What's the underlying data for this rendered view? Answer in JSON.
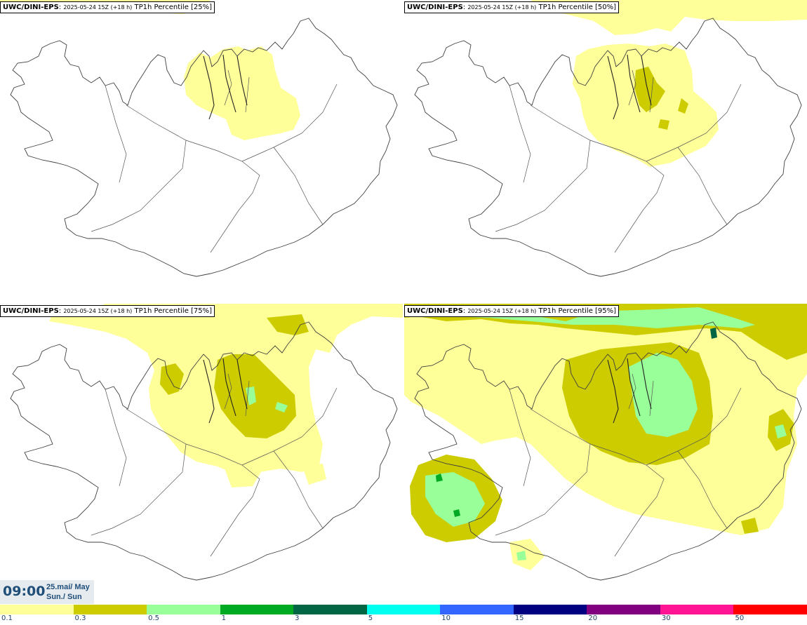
{
  "panels": [
    {
      "model": "UWC/DINI-EPS",
      "run": "2025-05-24 15Z (+18 h)",
      "field": "TP1h Percentile [25%]"
    },
    {
      "model": "UWC/DINI-EPS",
      "run": "2025-05-24 15Z (+18 h)",
      "field": "TP1h Percentile [50%]"
    },
    {
      "model": "UWC/DINI-EPS",
      "run": "2025-05-24 15Z (+18 h)",
      "field": "TP1h Percentile [75%]"
    },
    {
      "model": "UWC/DINI-EPS",
      "run": "2025-05-24 15Z (+18 h)",
      "field": "TP1h Percentile [95%]"
    }
  ],
  "valid_time": {
    "hour": "09:00",
    "date": "25.maí/ May",
    "day": "Sun./ Sun"
  },
  "legend": {
    "colors": [
      "#ffff99",
      "#cccc00",
      "#99ff99",
      "#00aa22",
      "#006644",
      "#00ffee",
      "#3366ff",
      "#000080",
      "#800080",
      "#ff1493",
      "#ff0000"
    ],
    "ticks": [
      "0.1",
      "0.3",
      "0.5",
      "1",
      "3",
      "5",
      "10",
      "15",
      "20",
      "30",
      "50"
    ]
  },
  "colors": {
    "light_yellow": "#ffff99",
    "olive": "#cccc00",
    "light_green": "#99ff99",
    "green": "#00aa22",
    "time_text": "#1f4e79"
  }
}
